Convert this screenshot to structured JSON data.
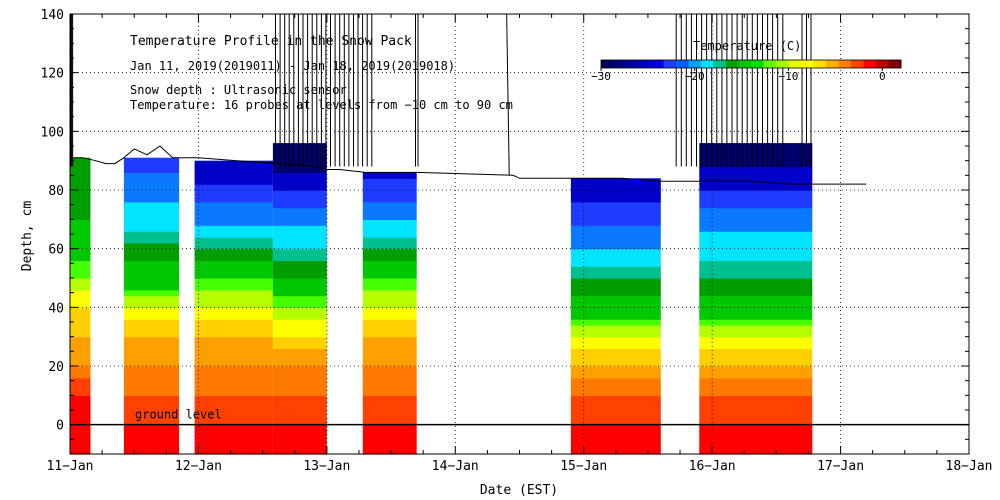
{
  "chart_data": {
    "type": "heatmap",
    "title": "Temperature Profile in the Snow Pack",
    "subtitle": "Jan 11, 2019(2019011) - Jan 18, 2019(2019018)",
    "notes": [
      "Snow depth : Ultrasonic sensor",
      "Temperature: 16 probes at levels from −10 cm to 90 cm"
    ],
    "xlabel": "Date (EST)",
    "ylabel": "Depth, cm",
    "x_tick_labels": [
      "11−Jan",
      "12−Jan",
      "13−Jan",
      "14−Jan",
      "15−Jan",
      "16−Jan",
      "17−Jan",
      "18−Jan"
    ],
    "xlim": [
      0,
      7
    ],
    "ylim": [
      -10,
      140
    ],
    "y_ticks": [
      0,
      20,
      40,
      60,
      80,
      100,
      120,
      140
    ],
    "ground_level_label": "ground level",
    "colorbar": {
      "title": "Temperature (C)",
      "range": [
        -30,
        2
      ],
      "tick_labels": [
        "−30",
        "−20",
        "−10",
        "0"
      ],
      "tick_values": [
        -30,
        -20,
        -10,
        0
      ],
      "colors": [
        "#000060",
        "#000080",
        "#0000a0",
        "#0000c0",
        "#0000e0",
        "#1e3cff",
        "#0060ff",
        "#00a0ff",
        "#00e0ff",
        "#00c090",
        "#00a000",
        "#00c800",
        "#00e000",
        "#60ff00",
        "#a0ff00",
        "#e0ff00",
        "#ffff00",
        "#ffe000",
        "#ffb000",
        "#ff8000",
        "#ff4000",
        "#ff0000",
        "#c00000",
        "#800000"
      ]
    },
    "temperature_scale": [
      {
        "t": -30,
        "color": "#000070"
      },
      {
        "t": -25,
        "color": "#0000c8"
      },
      {
        "t": -22,
        "color": "#1e3cff"
      },
      {
        "t": -19,
        "color": "#0a78ff"
      },
      {
        "t": -16,
        "color": "#00e5ff"
      },
      {
        "t": -13,
        "color": "#00c090"
      },
      {
        "t": -11,
        "color": "#009e00"
      },
      {
        "t": -9,
        "color": "#00c800"
      },
      {
        "t": -7,
        "color": "#46ff00"
      },
      {
        "t": -6,
        "color": "#b4ff00"
      },
      {
        "t": -5,
        "color": "#ffff00"
      },
      {
        "t": -4,
        "color": "#ffd000"
      },
      {
        "t": -3,
        "color": "#ffa000"
      },
      {
        "t": -2,
        "color": "#ff7800"
      },
      {
        "t": -1,
        "color": "#ff4000"
      },
      {
        "t": 0,
        "color": "#ff0000"
      }
    ],
    "data_segments": [
      {
        "start": 0.0,
        "end": 0.16,
        "surface": 91,
        "levels": [
          [
            -10,
            0
          ],
          [
            10,
            0
          ],
          [
            20,
            -2
          ],
          [
            30,
            -3
          ],
          [
            40,
            -4
          ],
          [
            50,
            -6
          ],
          [
            60,
            -8
          ],
          [
            70,
            -9
          ],
          [
            80,
            -10
          ],
          [
            90,
            -10
          ]
        ]
      },
      {
        "start": 0.42,
        "end": 0.85,
        "surface": 91,
        "levels": [
          [
            -10,
            0
          ],
          [
            0,
            0
          ],
          [
            10,
            -1
          ],
          [
            20,
            -2
          ],
          [
            30,
            -3
          ],
          [
            40,
            -5
          ],
          [
            50,
            -8
          ],
          [
            60,
            -10
          ],
          [
            65,
            -12
          ],
          [
            70,
            -15
          ],
          [
            80,
            -17
          ],
          [
            90,
            -20
          ]
        ]
      },
      {
        "start": 0.97,
        "end": 1.58,
        "surface": 90,
        "levels": [
          [
            -10,
            0
          ],
          [
            0,
            0
          ],
          [
            10,
            -1
          ],
          [
            20,
            -2
          ],
          [
            30,
            -3
          ],
          [
            40,
            -5
          ],
          [
            50,
            -7
          ],
          [
            60,
            -11
          ],
          [
            65,
            -14
          ],
          [
            70,
            -17
          ],
          [
            80,
            -21
          ],
          [
            90,
            -25
          ]
        ]
      },
      {
        "start": 1.58,
        "end": 2.0,
        "surface": 96,
        "levels": [
          [
            -10,
            0
          ],
          [
            0,
            0
          ],
          [
            10,
            -1
          ],
          [
            20,
            -2
          ],
          [
            30,
            -4
          ],
          [
            40,
            -6
          ],
          [
            50,
            -9
          ],
          [
            60,
            -13
          ],
          [
            70,
            -17
          ],
          [
            80,
            -22
          ],
          [
            90,
            -27
          ]
        ]
      },
      {
        "start": 2.28,
        "end": 2.7,
        "surface": 86,
        "levels": [
          [
            -10,
            0
          ],
          [
            0,
            0
          ],
          [
            10,
            -1
          ],
          [
            20,
            -2
          ],
          [
            30,
            -3
          ],
          [
            40,
            -5
          ],
          [
            50,
            -7
          ],
          [
            60,
            -11
          ],
          [
            70,
            -16
          ],
          [
            80,
            -21
          ],
          [
            90,
            -24
          ]
        ]
      },
      {
        "start": 3.9,
        "end": 4.6,
        "surface": 84,
        "levels": [
          [
            -10,
            0
          ],
          [
            0,
            0
          ],
          [
            10,
            -1
          ],
          [
            20,
            -3
          ],
          [
            30,
            -5
          ],
          [
            40,
            -8
          ],
          [
            50,
            -11
          ],
          [
            55,
            -14
          ],
          [
            60,
            -16
          ],
          [
            70,
            -20
          ],
          [
            80,
            -24
          ],
          [
            90,
            -26
          ]
        ]
      },
      {
        "start": 4.9,
        "end": 5.78,
        "surface": 96,
        "levels": [
          [
            -10,
            0
          ],
          [
            0,
            0
          ],
          [
            10,
            -1
          ],
          [
            20,
            -3
          ],
          [
            30,
            -5
          ],
          [
            40,
            -8
          ],
          [
            50,
            -11
          ],
          [
            60,
            -14
          ],
          [
            70,
            -17
          ],
          [
            80,
            -22
          ],
          [
            90,
            -26
          ]
        ]
      }
    ],
    "snow_depth_line": [
      [
        0.0,
        91
      ],
      [
        0.1,
        91
      ],
      [
        0.2,
        90
      ],
      [
        0.28,
        89
      ],
      [
        0.35,
        89
      ],
      [
        0.42,
        91
      ],
      [
        0.5,
        94
      ],
      [
        0.6,
        92
      ],
      [
        0.7,
        95
      ],
      [
        0.8,
        91
      ],
      [
        1.0,
        91
      ],
      [
        1.3,
        90
      ],
      [
        1.6,
        89
      ],
      [
        1.9,
        88
      ],
      [
        2.0,
        87
      ],
      [
        2.1,
        87
      ],
      [
        2.3,
        86
      ],
      [
        2.7,
        86
      ],
      [
        3.45,
        85
      ],
      [
        3.5,
        84
      ],
      [
        3.9,
        84
      ],
      [
        4.3,
        84
      ],
      [
        4.6,
        83
      ],
      [
        4.9,
        83
      ],
      [
        5.3,
        83
      ],
      [
        5.6,
        82
      ],
      [
        6.0,
        82
      ],
      [
        6.2,
        82
      ]
    ]
  }
}
